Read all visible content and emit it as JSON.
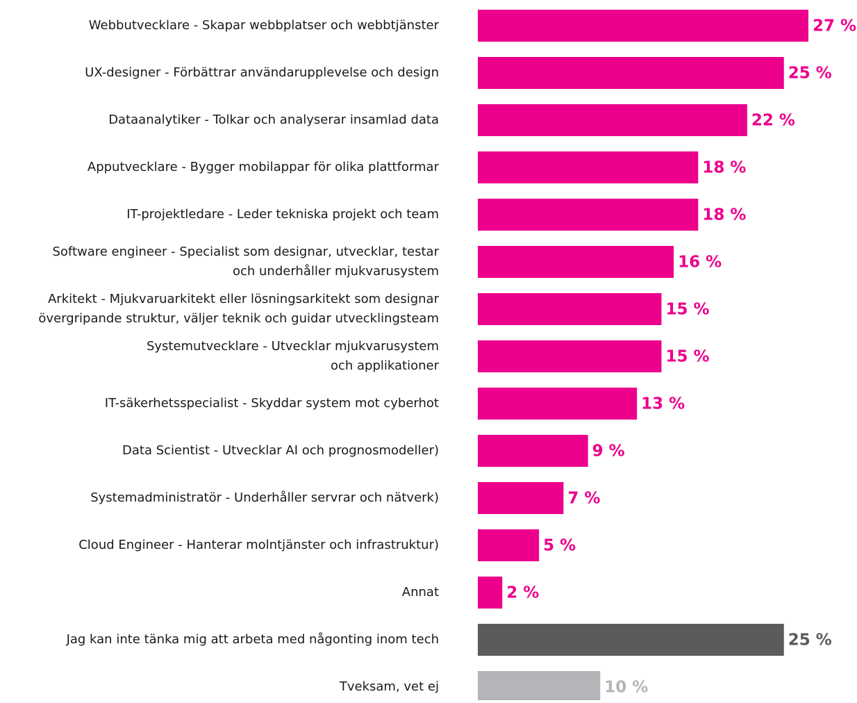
{
  "chart_data": {
    "type": "hbar",
    "categories": [
      "Webbutvecklare - Skapar webbplatser och webbtjänster",
      "UX-designer - Förbättrar användarupplevelse och design",
      "Dataanalytiker - Tolkar och analyserar insamlad data",
      "Apputvecklare - Bygger mobilappar för olika plattformar",
      "IT-projektledare - Leder tekniska projekt och team",
      "Software engineer - Specialist som designar, utvecklar, testar\noch underhåller mjukvarusystem",
      "Arkitekt - Mjukvaruarkitekt eller lösningsarkitekt  som designar\növergripande struktur, väljer teknik och guidar utvecklingsteam",
      "Systemutvecklare - Utvecklar mjukvarusystem\noch applikationer",
      "IT-säkerhetsspecialist - Skyddar system mot cyberhot",
      "Data Scientist - Utvecklar AI och prognosmodeller)",
      "Systemadministratör - Underhåller servrar och nätverk)",
      "Cloud Engineer - Hanterar molntjänster och infrastruktur)",
      "Annat",
      "Jag kan inte tänka mig att arbeta med någonting inom tech",
      "Tveksam, vet ej"
    ],
    "values": [
      27,
      25,
      22,
      18,
      18,
      16,
      15,
      15,
      13,
      9,
      7,
      5,
      2,
      25,
      10
    ],
    "value_labels": [
      "27 %",
      "25 %",
      "22 %",
      "18 %",
      "18 %",
      "16 %",
      "15 %",
      "15 %",
      "13 %",
      "9 %",
      "7 %",
      "5 %",
      "2 %",
      "25 %",
      "10 %"
    ],
    "colors": [
      "#ec008c",
      "#ec008c",
      "#ec008c",
      "#ec008c",
      "#ec008c",
      "#ec008c",
      "#ec008c",
      "#ec008c",
      "#ec008c",
      "#ec008c",
      "#ec008c",
      "#ec008c",
      "#ec008c",
      "#5a5b5d",
      "#b3b5b8"
    ]
  }
}
